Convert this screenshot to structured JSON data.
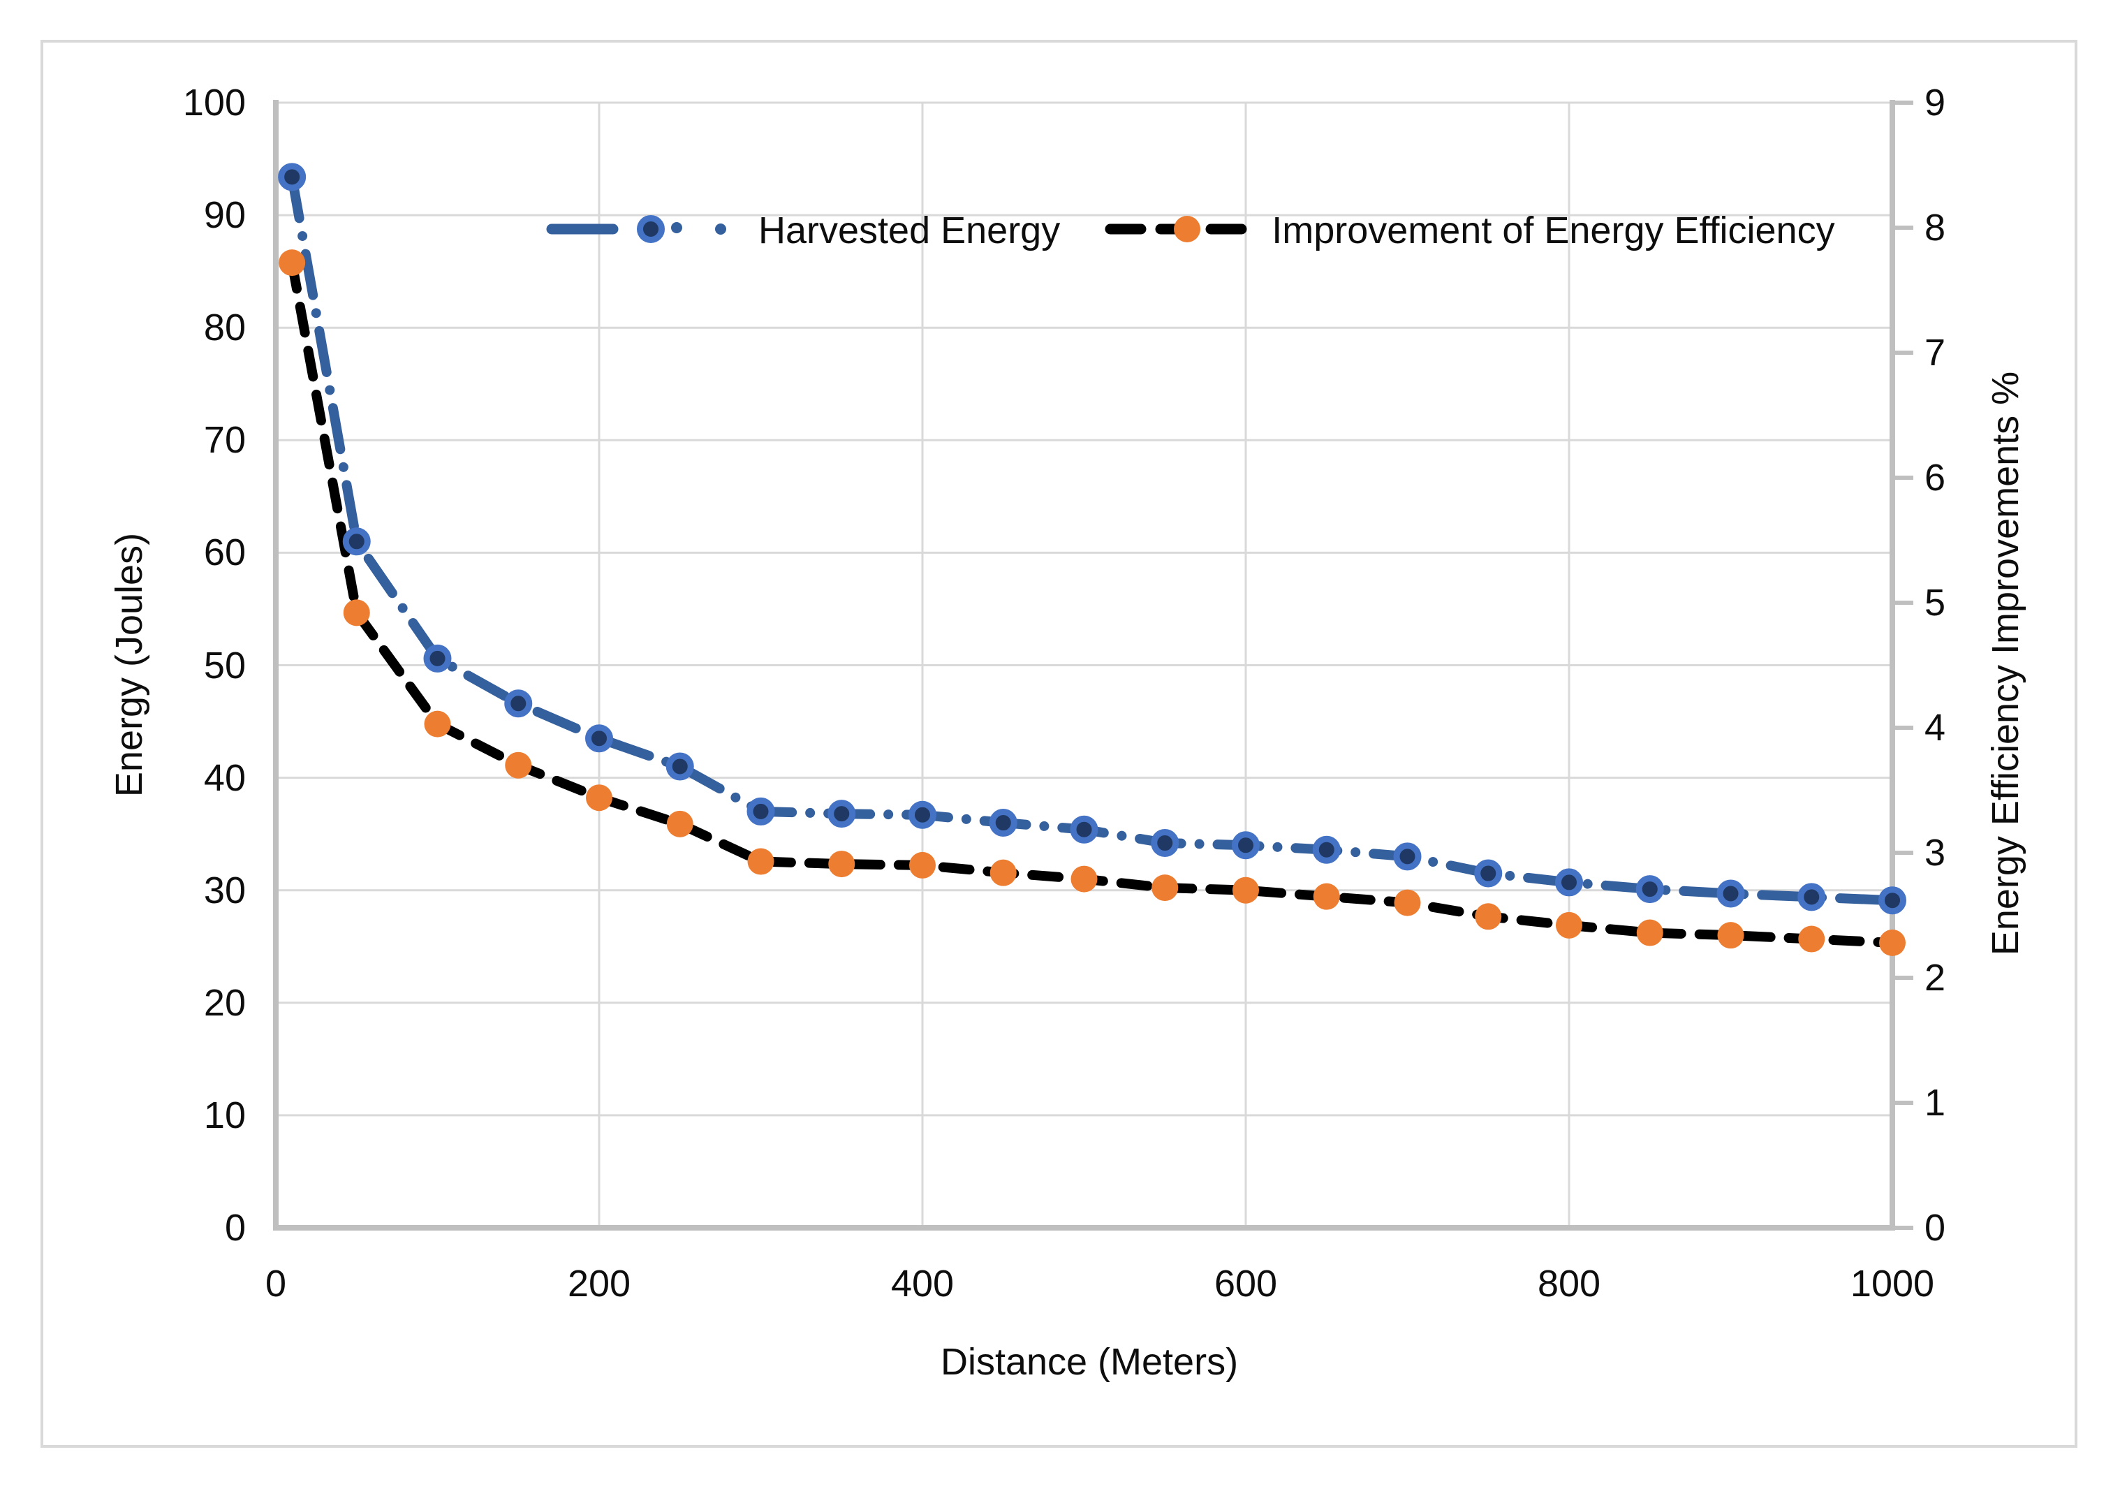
{
  "chart_data": {
    "type": "line",
    "title": "",
    "xlabel": "Distance (Meters)",
    "ylabel_left": "Energy (Joules)",
    "ylabel_right": "Energy Efficiency Improvements %",
    "x": [
      10,
      50,
      100,
      150,
      200,
      250,
      300,
      350,
      400,
      450,
      500,
      550,
      600,
      650,
      700,
      750,
      800,
      850,
      900,
      950,
      1000
    ],
    "series": [
      {
        "name": "Harvested Energy",
        "axis": "left",
        "values": [
          93.4,
          61.0,
          50.6,
          46.6,
          43.5,
          41.0,
          37.0,
          36.8,
          36.7,
          36.0,
          35.4,
          34.2,
          34.0,
          33.6,
          33.0,
          31.5,
          30.7,
          30.1,
          29.7,
          29.4,
          29.1
        ],
        "line_color": "#35609E",
        "marker_fill": "#1F3864",
        "marker_ring": "#4472C4",
        "dash_style": "long-dash-dot"
      },
      {
        "name": "Improvement of Energy Efficiency",
        "axis": "right",
        "values": [
          7.72,
          4.92,
          4.03,
          3.7,
          3.44,
          3.23,
          2.93,
          2.91,
          2.9,
          2.84,
          2.79,
          2.72,
          2.7,
          2.65,
          2.6,
          2.49,
          2.42,
          2.36,
          2.34,
          2.31,
          2.28
        ],
        "line_color": "#000000",
        "marker_fill": "#ED7D31",
        "marker_ring": null,
        "dash_style": "dash"
      }
    ],
    "x_axis": {
      "min": 0,
      "max": 1000,
      "tick_labels": [
        "0",
        "200",
        "400",
        "600",
        "800",
        "1000"
      ]
    },
    "left_axis": {
      "min": 0,
      "max": 100,
      "tick_labels": [
        "0",
        "10",
        "20",
        "30",
        "40",
        "50",
        "60",
        "70",
        "80",
        "90",
        "100"
      ]
    },
    "right_axis": {
      "min": 0,
      "max": 9,
      "tick_labels": [
        "0",
        "1",
        "2",
        "3",
        "4",
        "5",
        "6",
        "7",
        "8",
        "9"
      ]
    },
    "grid": true,
    "legend_position": "top-center",
    "colors": {
      "gridline": "#D9D9D9",
      "axis_line": "#BFBFBF",
      "tick_text": "#0D0D0D",
      "frame_border": "#D9D9D9",
      "background": "#FFFFFF"
    }
  }
}
